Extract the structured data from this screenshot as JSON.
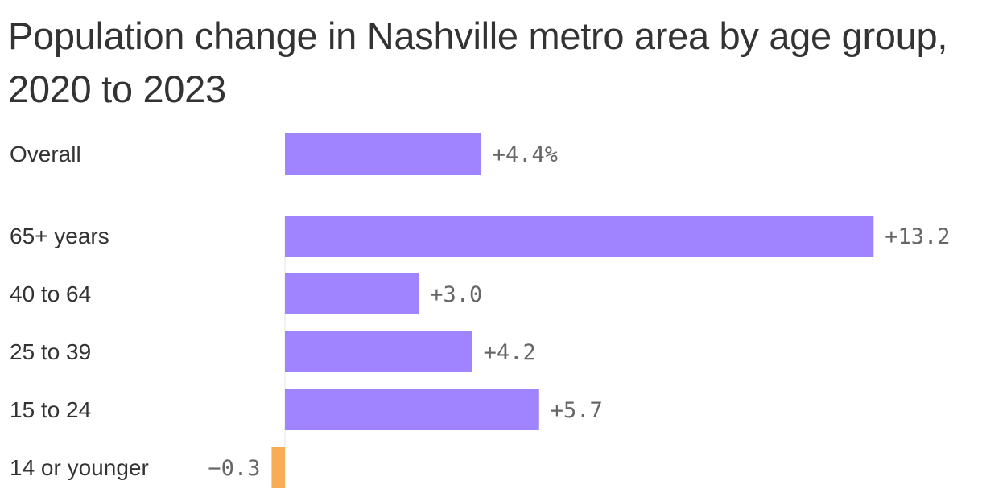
{
  "chart_data": {
    "type": "bar",
    "orientation": "horizontal",
    "title": "Population change in Nashville metro area by age group, 2020 to 2023",
    "xlabel": "",
    "ylabel": "",
    "categories": [
      "Overall",
      "65+ years",
      "40 to 64",
      "25 to 39",
      "15 to 24",
      "14 or younger"
    ],
    "values": [
      4.4,
      13.2,
      3.0,
      4.2,
      5.7,
      -0.3
    ],
    "value_labels": [
      "+4.4%",
      "+13.2",
      "+3.0",
      "+4.2",
      "+5.7",
      "−0.3"
    ],
    "unit": "%",
    "xlim": [
      -0.3,
      13.2
    ],
    "grid": false,
    "legend": "none",
    "colors": {
      "positive": "#a083ff",
      "negative": "#f6ad55"
    }
  }
}
